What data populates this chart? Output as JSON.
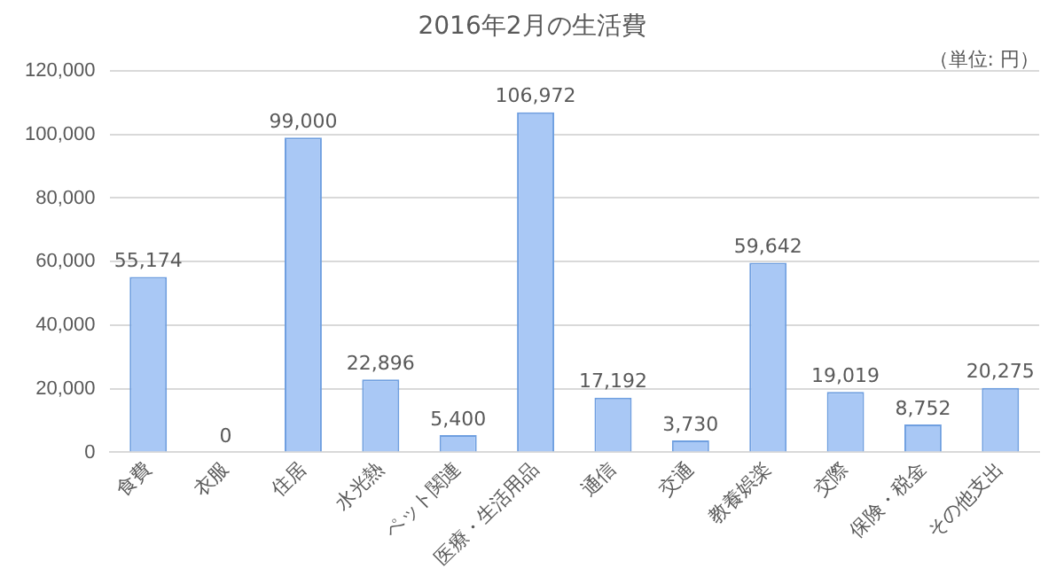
{
  "chart_data": {
    "type": "bar",
    "title": "2016年2月の生活費",
    "annotations": [
      "（単位: 円）"
    ],
    "categories": [
      "食費",
      "衣服",
      "住居",
      "水光熱",
      "ペット関連",
      "医療・生活用品",
      "通信",
      "交通",
      "教養娯楽",
      "交際",
      "保険・税金",
      "その他支出"
    ],
    "values": [
      55174,
      0,
      99000,
      22896,
      5400,
      106972,
      17192,
      3730,
      59642,
      19019,
      8752,
      20275
    ],
    "value_labels": [
      "55,174",
      "0",
      "99,000",
      "22,896",
      "5,400",
      "106,972",
      "17,192",
      "3,730",
      "59,642",
      "19,019",
      "8,752",
      "20,275"
    ],
    "color": "#a9c8f5",
    "ylim": [
      0,
      120000
    ],
    "yticks": [
      {
        "value": 0,
        "label": "0"
      },
      {
        "value": 20000,
        "label": "20,000"
      },
      {
        "value": 40000,
        "label": "40,000"
      },
      {
        "value": 60000,
        "label": "60,000"
      },
      {
        "value": 80000,
        "label": "80,000"
      },
      {
        "value": 100000,
        "label": "100,000"
      },
      {
        "value": 120000,
        "label": "120,000"
      }
    ],
    "grid": "y"
  }
}
